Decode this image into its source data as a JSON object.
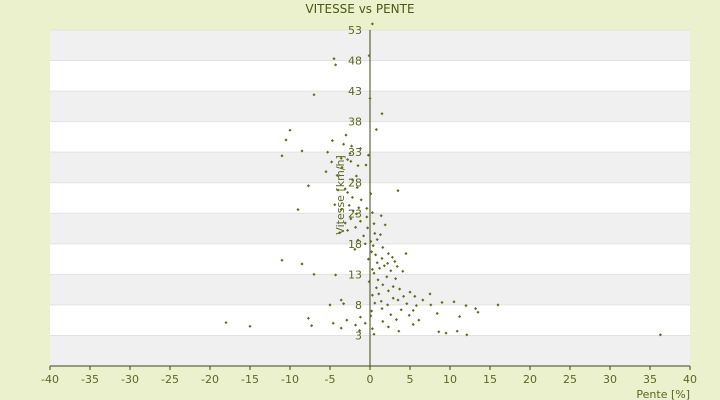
{
  "chart_data": {
    "type": "scatter",
    "title": "VITESSE vs PENTE",
    "xlabel": "Pente [%]",
    "ylabel": "Vitesse [km/h]",
    "xlim": [
      -40,
      40
    ],
    "ylim": [
      -2,
      53
    ],
    "x_ticks": [
      -40,
      -35,
      -30,
      -25,
      -20,
      -15,
      -10,
      -5,
      0,
      5,
      10,
      15,
      20,
      25,
      30,
      35,
      40
    ],
    "y_ticks": [
      3,
      8,
      13,
      18,
      23,
      28,
      33,
      38,
      43,
      48,
      53
    ],
    "grid": true,
    "colors": {
      "background": "#ebf0cd",
      "band_light": "#ffffff",
      "band_dark": "#f0f0f0",
      "marker": "#5f6b1e",
      "axis": "#3e4a0c",
      "text": "#5a6820"
    },
    "series": [
      {
        "points": [
          [
            0.3,
            54
          ],
          [
            -4.5,
            48.3
          ],
          [
            -0.1,
            48.8
          ],
          [
            -4.3,
            47.3
          ],
          [
            -7,
            42.4
          ],
          [
            0,
            41.8
          ],
          [
            1.5,
            39.3
          ],
          [
            -10,
            36.6
          ],
          [
            0.8,
            36.7
          ],
          [
            -3,
            35.8
          ],
          [
            -10.5,
            35
          ],
          [
            -4.7,
            34.9
          ],
          [
            -3.3,
            34.3
          ],
          [
            -2.3,
            34
          ],
          [
            -8.5,
            33.2
          ],
          [
            -1.2,
            33.6
          ],
          [
            -5.3,
            33
          ],
          [
            -2.5,
            32.8
          ],
          [
            -11,
            32.4
          ],
          [
            -0.2,
            32.5
          ],
          [
            -3.6,
            32
          ],
          [
            -2.8,
            31.8
          ],
          [
            -4.8,
            31.4
          ],
          [
            -2.4,
            31.5
          ],
          [
            -1.5,
            30.8
          ],
          [
            -0.5,
            30.9
          ],
          [
            -3.5,
            30.5
          ],
          [
            -5.5,
            29.8
          ],
          [
            -4.1,
            29.2
          ],
          [
            -1.7,
            29.1
          ],
          [
            -2.2,
            28.5
          ],
          [
            -7.7,
            27.5
          ],
          [
            -3.1,
            27
          ],
          [
            -1.6,
            27.2
          ],
          [
            -4,
            26.8
          ],
          [
            -2.8,
            26.4
          ],
          [
            0.1,
            26.2
          ],
          [
            3.5,
            26.7
          ],
          [
            -2.2,
            25.6
          ],
          [
            -1.1,
            25.2
          ],
          [
            -4.4,
            24.4
          ],
          [
            -2.6,
            24.3
          ],
          [
            -3.6,
            23.6
          ],
          [
            -1.4,
            23.9
          ],
          [
            -0.4,
            23.8
          ],
          [
            -9,
            23.6
          ],
          [
            -2.1,
            23.4
          ],
          [
            -1.7,
            22.9
          ],
          [
            0.3,
            23.1
          ],
          [
            1.4,
            22.6
          ],
          [
            -0.4,
            22.4
          ],
          [
            -2.4,
            22.1
          ],
          [
            -3.1,
            21.4
          ],
          [
            -1.2,
            21.7
          ],
          [
            0.5,
            21.3
          ],
          [
            1.9,
            21.1
          ],
          [
            -1.8,
            20.7
          ],
          [
            -0.3,
            20.6
          ],
          [
            -2.8,
            20.2
          ],
          [
            -3.8,
            19.8
          ],
          [
            0.6,
            19.7
          ],
          [
            1.3,
            19.5
          ],
          [
            -0.8,
            19.3
          ],
          [
            -1.5,
            18.6
          ],
          [
            0.1,
            18.4
          ],
          [
            0.9,
            18.7
          ],
          [
            -0.6,
            18
          ],
          [
            0.4,
            17.7
          ],
          [
            1.6,
            17.4
          ],
          [
            -1.9,
            17.1
          ],
          [
            0.2,
            16.7
          ],
          [
            0.7,
            16.2
          ],
          [
            2.3,
            16.4
          ],
          [
            4.5,
            16.4
          ],
          [
            2.8,
            15.8
          ],
          [
            1.5,
            15.6
          ],
          [
            -0.2,
            15.5
          ],
          [
            -11,
            15.3
          ],
          [
            3.1,
            15.1
          ],
          [
            2.2,
            14.8
          ],
          [
            0.9,
            14.9
          ],
          [
            -8.5,
            14.7
          ],
          [
            3.4,
            14.3
          ],
          [
            1.8,
            14.4
          ],
          [
            1.2,
            14
          ],
          [
            2.6,
            13.6
          ],
          [
            0.3,
            13.8
          ],
          [
            4.1,
            13.5
          ],
          [
            0.5,
            13.2
          ],
          [
            -7,
            13
          ],
          [
            -4.3,
            12.9
          ],
          [
            2.1,
            12.6
          ],
          [
            3.2,
            12.3
          ],
          [
            1,
            12.1
          ],
          [
            -0.1,
            11.8
          ],
          [
            1.6,
            11.3
          ],
          [
            2.9,
            11
          ],
          [
            0.8,
            10.8
          ],
          [
            3.7,
            10.6
          ],
          [
            2.3,
            10.3
          ],
          [
            5,
            10.1
          ],
          [
            1.1,
            9.8
          ],
          [
            0.3,
            9.6
          ],
          [
            4.2,
            9.4
          ],
          [
            5.6,
            9.4
          ],
          [
            7.5,
            9.8
          ],
          [
            2.9,
            9.1
          ],
          [
            3.5,
            8.8
          ],
          [
            1.4,
            8.6
          ],
          [
            6.6,
            8.8
          ],
          [
            0.6,
            8.3
          ],
          [
            4.6,
            8.2
          ],
          [
            9,
            8.4
          ],
          [
            2.2,
            8
          ],
          [
            7.6,
            8
          ],
          [
            10.5,
            8.5
          ],
          [
            5.8,
            7.9
          ],
          [
            -3.6,
            8.8
          ],
          [
            -3.3,
            8.2
          ],
          [
            -5,
            8
          ],
          [
            12,
            7.9
          ],
          [
            16,
            8
          ],
          [
            13.2,
            7.4
          ],
          [
            1.5,
            7.4
          ],
          [
            3.9,
            7.2
          ],
          [
            5.4,
            7.1
          ],
          [
            0.2,
            7
          ],
          [
            13.5,
            6.8
          ],
          [
            8.4,
            6.6
          ],
          [
            2.6,
            6.4
          ],
          [
            0.1,
            6.2
          ],
          [
            4.9,
            6.3
          ],
          [
            11.2,
            6.1
          ],
          [
            -1.2,
            6
          ],
          [
            -7.7,
            5.8
          ],
          [
            -2.9,
            5.5
          ],
          [
            3.3,
            5.6
          ],
          [
            6.1,
            5.5
          ],
          [
            1.6,
            5.3
          ],
          [
            -0.6,
            5
          ],
          [
            -4.6,
            5
          ],
          [
            -1.8,
            4.7
          ],
          [
            5.4,
            4.8
          ],
          [
            -7.3,
            4.6
          ],
          [
            -15,
            4.5
          ],
          [
            -18,
            5.1
          ],
          [
            2.3,
            4.4
          ],
          [
            -3.6,
            4.2
          ],
          [
            0.3,
            4.1
          ],
          [
            -1.3,
            3.8
          ],
          [
            3.6,
            3.7
          ],
          [
            10.9,
            3.7
          ],
          [
            8.6,
            3.6
          ],
          [
            9.5,
            3.4
          ],
          [
            12.1,
            3.1
          ],
          [
            36.3,
            3.1
          ],
          [
            0.5,
            3.2
          ]
        ]
      }
    ]
  }
}
